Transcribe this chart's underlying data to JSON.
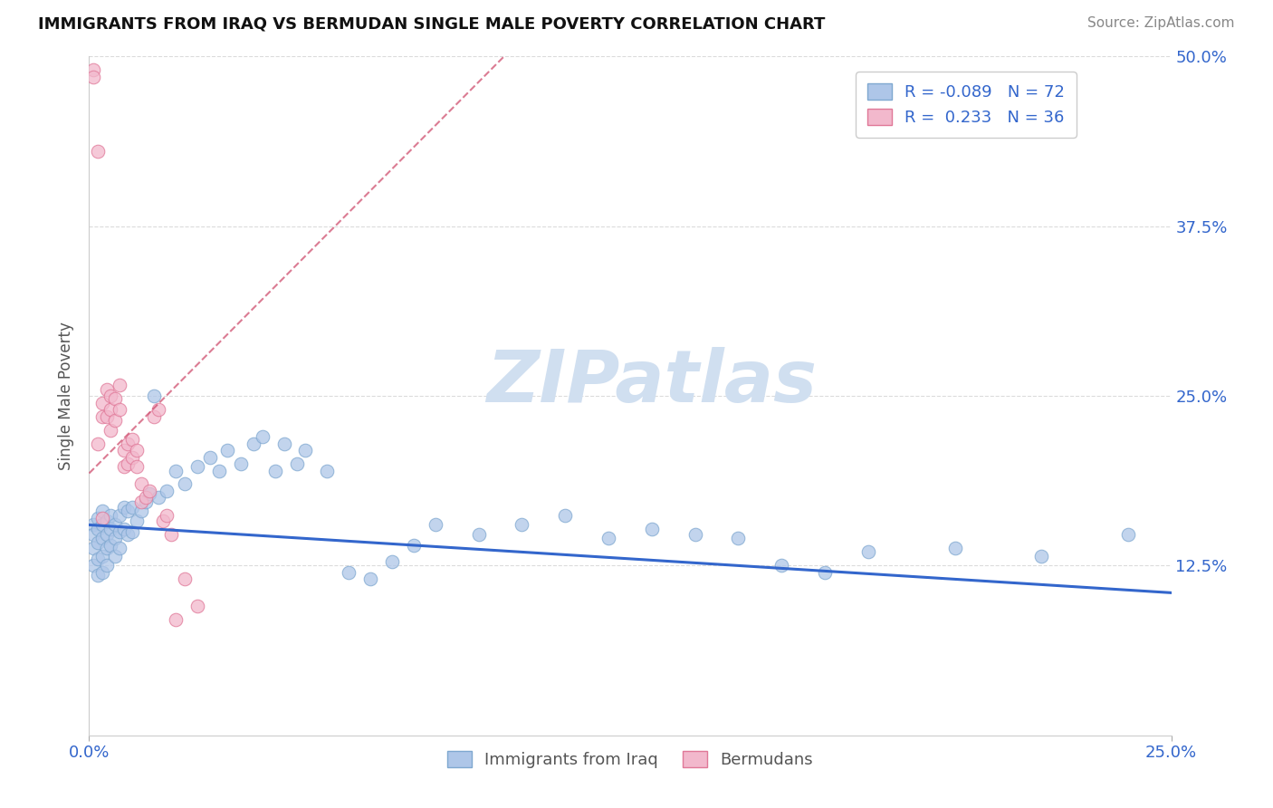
{
  "title": "IMMIGRANTS FROM IRAQ VS BERMUDAN SINGLE MALE POVERTY CORRELATION CHART",
  "source": "Source: ZipAtlas.com",
  "xlabel_iraq": "Immigrants from Iraq",
  "xlabel_bermuda": "Bermudans",
  "ylabel": "Single Male Poverty",
  "x_min": 0.0,
  "x_max": 0.25,
  "y_min": 0.0,
  "y_max": 0.5,
  "y_ticks": [
    0.125,
    0.25,
    0.375,
    0.5
  ],
  "y_tick_labels": [
    "12.5%",
    "25.0%",
    "37.5%",
    "50.0%"
  ],
  "x_ticks": [
    0.0,
    0.25
  ],
  "x_tick_labels": [
    "0.0%",
    "25.0%"
  ],
  "grid_color": "#cccccc",
  "background_color": "#ffffff",
  "iraq_color": "#aec6e8",
  "iraq_edge_color": "#7fa8d0",
  "bermuda_color": "#f2b8cc",
  "bermuda_edge_color": "#e07898",
  "iraq_R": -0.089,
  "iraq_N": 72,
  "bermuda_R": 0.233,
  "bermuda_N": 36,
  "iraq_line_color": "#3366cc",
  "bermuda_line_color": "#cc4466",
  "watermark": "ZIPatlas",
  "watermark_color": "#d0dff0",
  "iraq_points_x": [
    0.001,
    0.001,
    0.001,
    0.001,
    0.002,
    0.002,
    0.002,
    0.002,
    0.002,
    0.003,
    0.003,
    0.003,
    0.003,
    0.003,
    0.004,
    0.004,
    0.004,
    0.004,
    0.005,
    0.005,
    0.005,
    0.006,
    0.006,
    0.006,
    0.007,
    0.007,
    0.007,
    0.008,
    0.008,
    0.009,
    0.009,
    0.01,
    0.01,
    0.011,
    0.012,
    0.013,
    0.014,
    0.015,
    0.016,
    0.018,
    0.02,
    0.022,
    0.025,
    0.028,
    0.03,
    0.032,
    0.035,
    0.038,
    0.04,
    0.043,
    0.045,
    0.048,
    0.05,
    0.055,
    0.06,
    0.065,
    0.07,
    0.075,
    0.08,
    0.09,
    0.1,
    0.11,
    0.12,
    0.13,
    0.14,
    0.15,
    0.16,
    0.17,
    0.18,
    0.2,
    0.22,
    0.24
  ],
  "iraq_points_y": [
    0.155,
    0.148,
    0.138,
    0.125,
    0.16,
    0.152,
    0.142,
    0.13,
    0.118,
    0.165,
    0.155,
    0.145,
    0.132,
    0.12,
    0.158,
    0.148,
    0.138,
    0.125,
    0.162,
    0.152,
    0.14,
    0.155,
    0.145,
    0.132,
    0.162,
    0.15,
    0.138,
    0.168,
    0.152,
    0.165,
    0.148,
    0.168,
    0.15,
    0.158,
    0.165,
    0.172,
    0.178,
    0.25,
    0.175,
    0.18,
    0.195,
    0.185,
    0.198,
    0.205,
    0.195,
    0.21,
    0.2,
    0.215,
    0.22,
    0.195,
    0.215,
    0.2,
    0.21,
    0.195,
    0.12,
    0.115,
    0.128,
    0.14,
    0.155,
    0.148,
    0.155,
    0.162,
    0.145,
    0.152,
    0.148,
    0.145,
    0.125,
    0.12,
    0.135,
    0.138,
    0.132,
    0.148
  ],
  "bermuda_points_x": [
    0.001,
    0.001,
    0.002,
    0.002,
    0.003,
    0.003,
    0.003,
    0.004,
    0.004,
    0.005,
    0.005,
    0.005,
    0.006,
    0.006,
    0.007,
    0.007,
    0.008,
    0.008,
    0.009,
    0.009,
    0.01,
    0.01,
    0.011,
    0.011,
    0.012,
    0.012,
    0.013,
    0.014,
    0.015,
    0.016,
    0.017,
    0.018,
    0.019,
    0.02,
    0.022,
    0.025
  ],
  "bermuda_points_y": [
    0.49,
    0.485,
    0.43,
    0.215,
    0.245,
    0.235,
    0.16,
    0.255,
    0.235,
    0.25,
    0.24,
    0.225,
    0.248,
    0.232,
    0.258,
    0.24,
    0.21,
    0.198,
    0.215,
    0.2,
    0.218,
    0.205,
    0.21,
    0.198,
    0.185,
    0.172,
    0.175,
    0.18,
    0.235,
    0.24,
    0.158,
    0.162,
    0.148,
    0.085,
    0.115,
    0.095
  ]
}
